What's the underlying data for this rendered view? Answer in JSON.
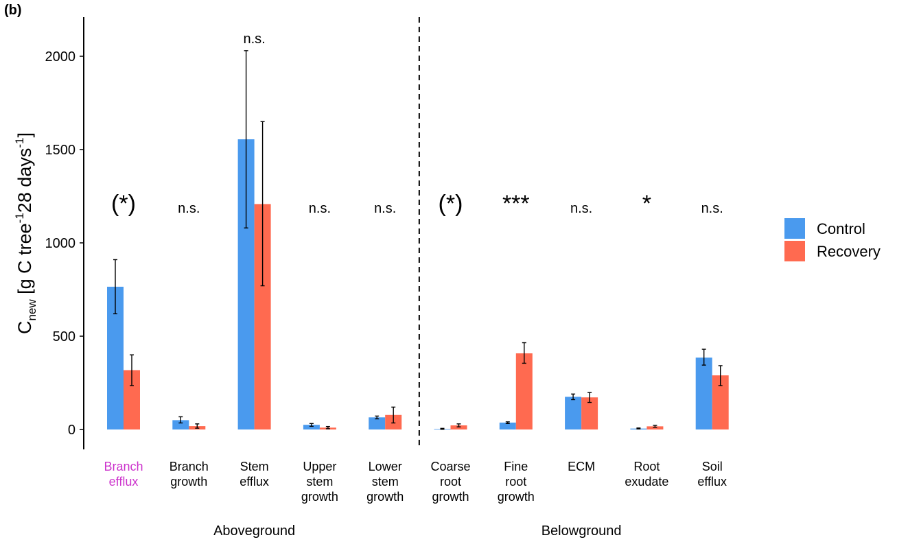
{
  "panel_label": "(b)",
  "chart_data": {
    "type": "bar",
    "ylabel_main": "C",
    "ylabel_sub": "new",
    "ylabel_parts": [
      "[g C  tree",
      "-1",
      "28  days",
      "-1",
      "]"
    ],
    "ylim": [
      -110,
      2200
    ],
    "yticks": [
      0,
      500,
      1000,
      1500,
      2000
    ],
    "grid": false,
    "legend_placement": "right",
    "categories": [
      [
        "Branch",
        "efflux"
      ],
      [
        "Branch",
        "growth"
      ],
      [
        "Stem",
        "efflux"
      ],
      [
        "Upper",
        "stem",
        "growth"
      ],
      [
        "Lower",
        "stem",
        "growth"
      ],
      [
        "Coarse",
        "root",
        "growth"
      ],
      [
        "Fine",
        "root",
        "growth"
      ],
      [
        "ECM"
      ],
      [
        "Root",
        "exudate"
      ],
      [
        "Soil",
        "efflux"
      ]
    ],
    "highlight_category_index": 0,
    "highlight_color": "#CC33CC",
    "series": [
      {
        "name": "Control",
        "color": "#4A9AEE",
        "values": [
          765,
          50,
          1555,
          25,
          65,
          3,
          37,
          175,
          5,
          385
        ],
        "err_low": [
          620,
          35,
          1080,
          17,
          57,
          1,
          32,
          160,
          3,
          345
        ],
        "err_high": [
          910,
          68,
          2030,
          32,
          72,
          6,
          41,
          190,
          8,
          430
        ]
      },
      {
        "name": "Recovery",
        "color": "#FF6A50",
        "values": [
          318,
          18,
          1208,
          10,
          78,
          22,
          408,
          172,
          17,
          290
        ],
        "err_low": [
          235,
          7,
          770,
          4,
          35,
          14,
          355,
          145,
          12,
          235
        ],
        "err_high": [
          400,
          30,
          1650,
          16,
          120,
          30,
          465,
          198,
          22,
          342
        ]
      }
    ],
    "significance": [
      "(*)",
      "n.s.",
      "n.s.",
      "n.s.",
      "n.s.",
      "(*)",
      "***",
      "n.s.",
      "*",
      "n.s."
    ],
    "groups": [
      {
        "label": "Aboveground",
        "from": 0,
        "to": 4
      },
      {
        "label": "Belowground",
        "from": 5,
        "to": 9
      }
    ],
    "divider_after_index": 4
  }
}
